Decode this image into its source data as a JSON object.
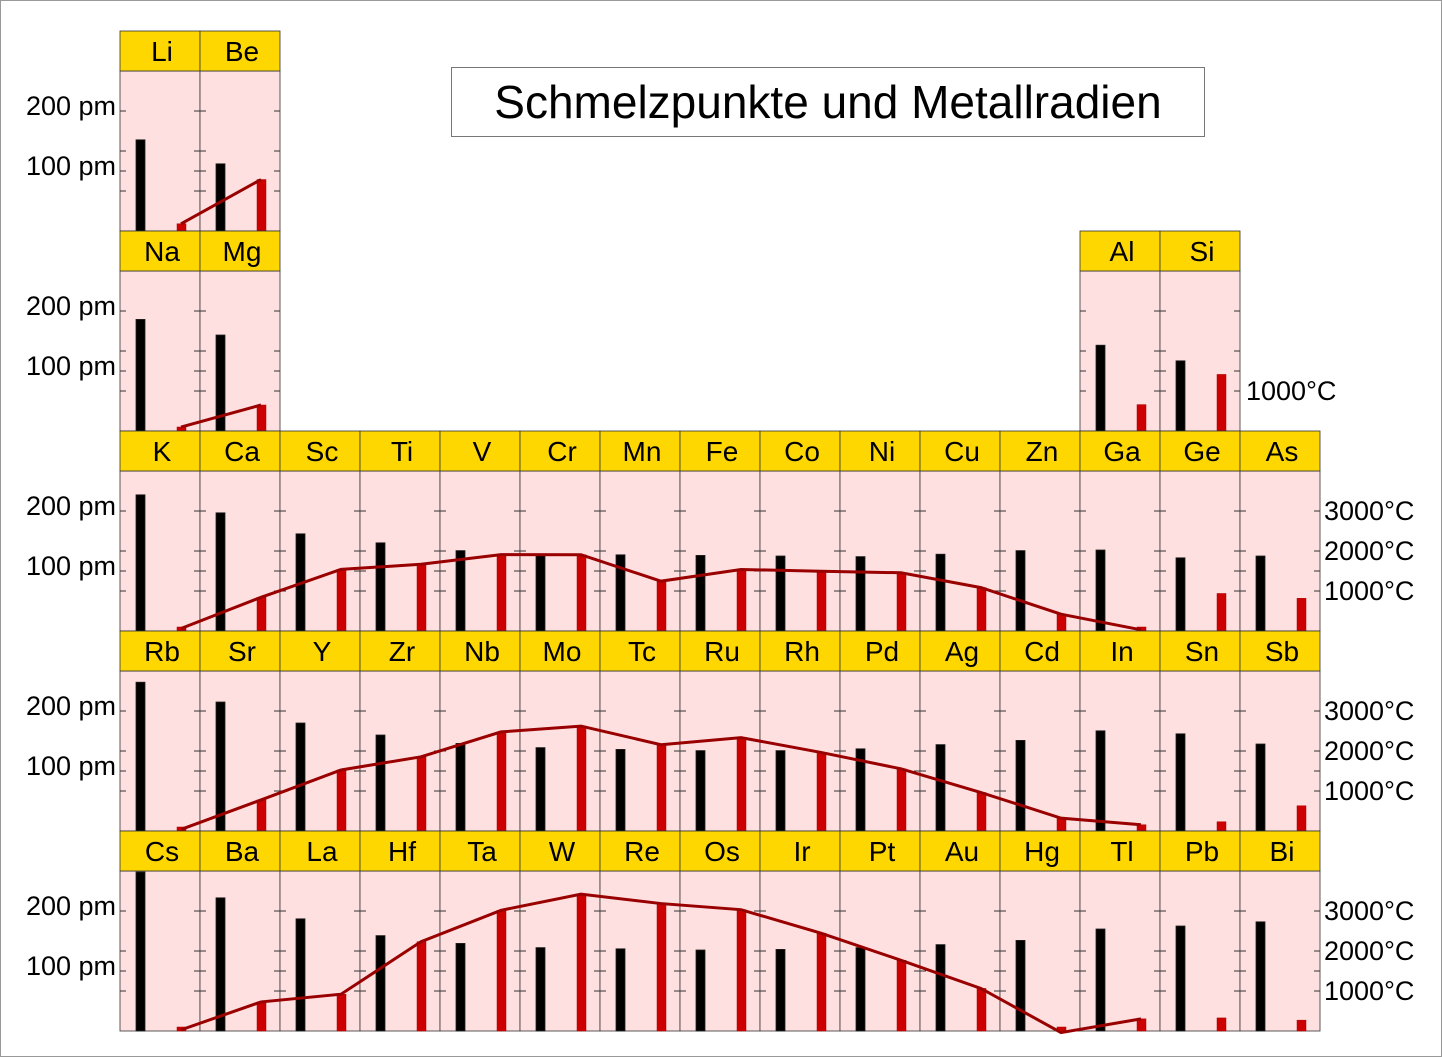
{
  "chart_data": {
    "type": "bar",
    "title": "Schmelzpunkte und Metallradien",
    "series_colors": {
      "radius": "#000000",
      "melting_point": "#CC0000",
      "line": "#990000",
      "header": "#FFD700",
      "cell": "#FFE0E0"
    },
    "radius_ticks": [
      {
        "value": 200,
        "label": "200 pm"
      },
      {
        "value": 100,
        "label": "100 pm"
      }
    ],
    "temp_ticks": {
      "3": [
        {
          "value": 1000,
          "label": "1000°C"
        }
      ],
      "4": [
        {
          "value": 3000,
          "label": "3000°C"
        },
        {
          "value": 2000,
          "label": "2000°C"
        },
        {
          "value": 1000,
          "label": "1000°C"
        }
      ],
      "5": [
        {
          "value": 3000,
          "label": "3000°C"
        },
        {
          "value": 2000,
          "label": "2000°C"
        },
        {
          "value": 1000,
          "label": "1000°C"
        }
      ],
      "6": [
        {
          "value": 3000,
          "label": "3000°C"
        },
        {
          "value": 2000,
          "label": "2000°C"
        },
        {
          "value": 1000,
          "label": "1000°C"
        }
      ]
    },
    "radius_label_periods": [
      2,
      3,
      4,
      5,
      6
    ],
    "elements": [
      {
        "symbol": "Li",
        "period": 2,
        "group": 1,
        "radius_pm": 152,
        "melting_c": 181
      },
      {
        "symbol": "Be",
        "period": 2,
        "group": 2,
        "radius_pm": 112,
        "melting_c": 1287
      },
      {
        "symbol": "Na",
        "period": 3,
        "group": 1,
        "radius_pm": 186,
        "melting_c": 98
      },
      {
        "symbol": "Mg",
        "period": 3,
        "group": 2,
        "radius_pm": 160,
        "melting_c": 650
      },
      {
        "symbol": "Al",
        "period": 3,
        "group": 13,
        "radius_pm": 143,
        "melting_c": 660
      },
      {
        "symbol": "Si",
        "period": 3,
        "group": 14,
        "radius_pm": 117,
        "melting_c": 1414
      },
      {
        "symbol": "K",
        "period": 4,
        "group": 1,
        "radius_pm": 227,
        "melting_c": 63
      },
      {
        "symbol": "Ca",
        "period": 4,
        "group": 2,
        "radius_pm": 197,
        "melting_c": 842
      },
      {
        "symbol": "Sc",
        "period": 4,
        "group": 3,
        "radius_pm": 162,
        "melting_c": 1541
      },
      {
        "symbol": "Ti",
        "period": 4,
        "group": 4,
        "radius_pm": 147,
        "melting_c": 1668
      },
      {
        "symbol": "V",
        "period": 4,
        "group": 5,
        "radius_pm": 134,
        "melting_c": 1910
      },
      {
        "symbol": "Cr",
        "period": 4,
        "group": 6,
        "radius_pm": 128,
        "melting_c": 1907
      },
      {
        "symbol": "Mn",
        "period": 4,
        "group": 7,
        "radius_pm": 127,
        "melting_c": 1246
      },
      {
        "symbol": "Fe",
        "period": 4,
        "group": 8,
        "radius_pm": 126,
        "melting_c": 1538
      },
      {
        "symbol": "Co",
        "period": 4,
        "group": 9,
        "radius_pm": 125,
        "melting_c": 1495
      },
      {
        "symbol": "Ni",
        "period": 4,
        "group": 10,
        "radius_pm": 124,
        "melting_c": 1455
      },
      {
        "symbol": "Cu",
        "period": 4,
        "group": 11,
        "radius_pm": 128,
        "melting_c": 1085
      },
      {
        "symbol": "Zn",
        "period": 4,
        "group": 12,
        "radius_pm": 134,
        "melting_c": 420
      },
      {
        "symbol": "Ga",
        "period": 4,
        "group": 13,
        "radius_pm": 135,
        "melting_c": 30
      },
      {
        "symbol": "Ge",
        "period": 4,
        "group": 14,
        "radius_pm": 122,
        "melting_c": 938
      },
      {
        "symbol": "As",
        "period": 4,
        "group": 15,
        "radius_pm": 125,
        "melting_c": 817
      },
      {
        "symbol": "Rb",
        "period": 5,
        "group": 1,
        "radius_pm": 248,
        "melting_c": 39
      },
      {
        "symbol": "Sr",
        "period": 5,
        "group": 2,
        "radius_pm": 215,
        "melting_c": 777
      },
      {
        "symbol": "Y",
        "period": 5,
        "group": 3,
        "radius_pm": 180,
        "melting_c": 1526
      },
      {
        "symbol": "Zr",
        "period": 5,
        "group": 4,
        "radius_pm": 160,
        "melting_c": 1855
      },
      {
        "symbol": "Nb",
        "period": 5,
        "group": 5,
        "radius_pm": 146,
        "melting_c": 2477
      },
      {
        "symbol": "Mo",
        "period": 5,
        "group": 6,
        "radius_pm": 139,
        "melting_c": 2623
      },
      {
        "symbol": "Tc",
        "period": 5,
        "group": 7,
        "radius_pm": 136,
        "melting_c": 2157
      },
      {
        "symbol": "Ru",
        "period": 5,
        "group": 8,
        "radius_pm": 134,
        "melting_c": 2334
      },
      {
        "symbol": "Rh",
        "period": 5,
        "group": 9,
        "radius_pm": 134,
        "melting_c": 1964
      },
      {
        "symbol": "Pd",
        "period": 5,
        "group": 10,
        "radius_pm": 137,
        "melting_c": 1555
      },
      {
        "symbol": "Ag",
        "period": 5,
        "group": 11,
        "radius_pm": 144,
        "melting_c": 962
      },
      {
        "symbol": "Cd",
        "period": 5,
        "group": 12,
        "radius_pm": 151,
        "melting_c": 321
      },
      {
        "symbol": "In",
        "period": 5,
        "group": 13,
        "radius_pm": 167,
        "melting_c": 157
      },
      {
        "symbol": "Sn",
        "period": 5,
        "group": 14,
        "radius_pm": 162,
        "melting_c": 232
      },
      {
        "symbol": "Sb",
        "period": 5,
        "group": 15,
        "radius_pm": 145,
        "melting_c": 631
      },
      {
        "symbol": "Cs",
        "period": 6,
        "group": 1,
        "radius_pm": 265,
        "melting_c": 28
      },
      {
        "symbol": "Ba",
        "period": 6,
        "group": 2,
        "radius_pm": 222,
        "melting_c": 727
      },
      {
        "symbol": "La",
        "period": 6,
        "group": 3,
        "radius_pm": 187,
        "melting_c": 920
      },
      {
        "symbol": "Hf",
        "period": 6,
        "group": 4,
        "radius_pm": 159,
        "melting_c": 2233
      },
      {
        "symbol": "Ta",
        "period": 6,
        "group": 5,
        "radius_pm": 146,
        "melting_c": 3017
      },
      {
        "symbol": "W",
        "period": 6,
        "group": 6,
        "radius_pm": 139,
        "melting_c": 3422
      },
      {
        "symbol": "Re",
        "period": 6,
        "group": 7,
        "radius_pm": 137,
        "melting_c": 3186
      },
      {
        "symbol": "Os",
        "period": 6,
        "group": 8,
        "radius_pm": 135,
        "melting_c": 3033
      },
      {
        "symbol": "Ir",
        "period": 6,
        "group": 9,
        "radius_pm": 136,
        "melting_c": 2446
      },
      {
        "symbol": "Pt",
        "period": 6,
        "group": 10,
        "radius_pm": 139,
        "melting_c": 1768
      },
      {
        "symbol": "Au",
        "period": 6,
        "group": 11,
        "radius_pm": 144,
        "melting_c": 1064
      },
      {
        "symbol": "Hg",
        "period": 6,
        "group": 12,
        "radius_pm": 151,
        "melting_c": -39
      },
      {
        "symbol": "Tl",
        "period": 6,
        "group": 13,
        "radius_pm": 170,
        "melting_c": 304
      },
      {
        "symbol": "Pb",
        "period": 6,
        "group": 14,
        "radius_pm": 175,
        "melting_c": 327
      },
      {
        "symbol": "Bi",
        "period": 6,
        "group": 15,
        "radius_pm": 182,
        "melting_c": 271
      }
    ],
    "melting_lines": [
      [
        "Li",
        "Be"
      ],
      [
        "Na",
        "Mg"
      ],
      [
        "K",
        "Ca",
        "Sc",
        "Ti",
        "V",
        "Cr",
        "Mn",
        "Fe",
        "Co",
        "Ni",
        "Cu",
        "Zn",
        "Ga"
      ],
      [
        "Rb",
        "Sr",
        "Y",
        "Zr",
        "Nb",
        "Mo",
        "Tc",
        "Ru",
        "Rh",
        "Pd",
        "Ag",
        "Cd",
        "In"
      ],
      [
        "Cs",
        "Ba",
        "La",
        "Hf",
        "Ta",
        "W",
        "Re",
        "Os",
        "Ir",
        "Pt",
        "Au",
        "Hg",
        "Tl"
      ]
    ]
  }
}
